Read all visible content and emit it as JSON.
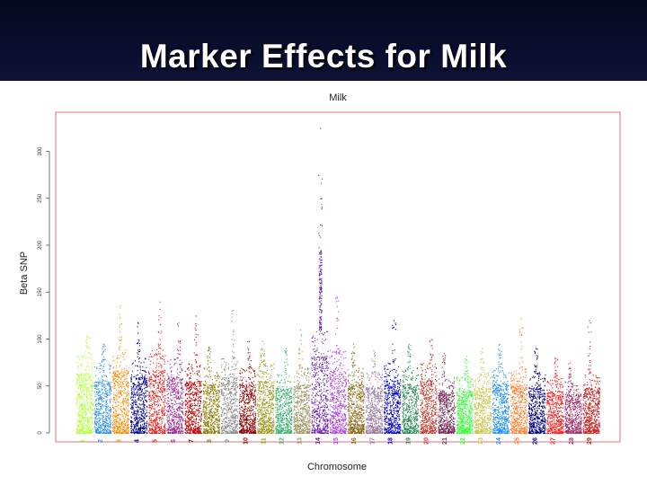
{
  "slide": {
    "title": "Marker Effects for Milk"
  },
  "chart_data": {
    "type": "scatter",
    "title": "Milk",
    "xlabel": "Chromosome",
    "ylabel": "Beta SNP",
    "ylim": [
      0,
      325
    ],
    "yticks": [
      0,
      50,
      100,
      150,
      200,
      250,
      300
    ],
    "grid": false,
    "legend": "none",
    "chromosomes": [
      {
        "label": "1",
        "color": "#adff2f",
        "typical_max": 85,
        "peak": 104
      },
      {
        "label": "2",
        "color": "#2b8ef5",
        "typical_max": 75,
        "peak": 95
      },
      {
        "label": "3",
        "color": "#ff8c00",
        "typical_max": 90,
        "peak": 136
      },
      {
        "label": "4",
        "color": "#00008b",
        "typical_max": 80,
        "peak": 118
      },
      {
        "label": "5",
        "color": "#e81a1a",
        "typical_max": 90,
        "peak": 140
      },
      {
        "label": "6",
        "color": "#9b2d8f",
        "typical_max": 80,
        "peak": 118
      },
      {
        "label": "7",
        "color": "#c00000",
        "typical_max": 75,
        "peak": 125
      },
      {
        "label": "8",
        "color": "#8b7b00",
        "typical_max": 70,
        "peak": 92
      },
      {
        "label": "9",
        "color": "#8c8c8c",
        "typical_max": 80,
        "peak": 131
      },
      {
        "label": "10",
        "color": "#8b0000",
        "typical_max": 70,
        "peak": 98
      },
      {
        "label": "11",
        "color": "#9c9a1a",
        "typical_max": 75,
        "peak": 98
      },
      {
        "label": "12",
        "color": "#3cb371",
        "typical_max": 65,
        "peak": 90
      },
      {
        "label": "13",
        "color": "#a09060",
        "typical_max": 70,
        "peak": 110
      },
      {
        "label": "14",
        "color": "#6a1fb0",
        "typical_max": 110,
        "peak": 325
      },
      {
        "label": "15",
        "color": "#b040e0",
        "typical_max": 90,
        "peak": 145
      },
      {
        "label": "16",
        "color": "#8b6914",
        "typical_max": 70,
        "peak": 95
      },
      {
        "label": "17",
        "color": "#9a7aa0",
        "typical_max": 65,
        "peak": 88
      },
      {
        "label": "18",
        "color": "#0000cd",
        "typical_max": 75,
        "peak": 120
      },
      {
        "label": "19",
        "color": "#2e8b57",
        "typical_max": 70,
        "peak": 95
      },
      {
        "label": "20",
        "color": "#c0392b",
        "typical_max": 75,
        "peak": 100
      },
      {
        "label": "21",
        "color": "#7a2d5a",
        "typical_max": 60,
        "peak": 85
      },
      {
        "label": "22",
        "color": "#32ff32",
        "typical_max": 60,
        "peak": 82
      },
      {
        "label": "23",
        "color": "#c8c850",
        "typical_max": 65,
        "peak": 90
      },
      {
        "label": "24",
        "color": "#1e90ff",
        "typical_max": 70,
        "peak": 95
      },
      {
        "label": "25",
        "color": "#ff7f27",
        "typical_max": 70,
        "peak": 122
      },
      {
        "label": "26",
        "color": "#000080",
        "typical_max": 65,
        "peak": 90
      },
      {
        "label": "27",
        "color": "#ff2020",
        "typical_max": 60,
        "peak": 80
      },
      {
        "label": "28",
        "color": "#a0306a",
        "typical_max": 55,
        "peak": 75
      },
      {
        "label": "29",
        "color": "#c81e1e",
        "typical_max": 65,
        "peak": 120
      }
    ]
  }
}
